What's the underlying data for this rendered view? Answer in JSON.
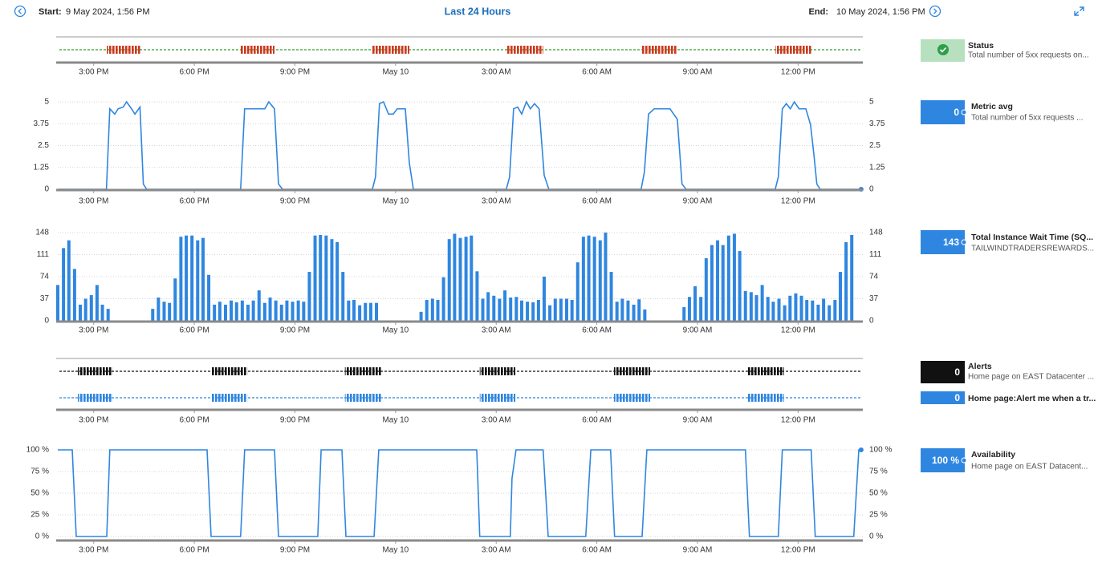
{
  "header": {
    "start_label": "Start:",
    "start": "9 May 2024, 1:56 PM",
    "title": "Last 24 Hours",
    "end_label": "End:",
    "end": "10 May 2024, 1:56 PM"
  },
  "time_axis": {
    "xlim": [
      0,
      24
    ],
    "xticks": [
      {
        "value": 1.07,
        "label": "3:00 PM"
      },
      {
        "value": 4.07,
        "label": "6:00 PM"
      },
      {
        "value": 7.07,
        "label": "9:00 PM"
      },
      {
        "value": 10.07,
        "label": "May 10"
      },
      {
        "value": 13.07,
        "label": "3:00 AM"
      },
      {
        "value": 16.07,
        "label": "6:00 AM"
      },
      {
        "value": 19.07,
        "label": "9:00 AM"
      },
      {
        "value": 22.07,
        "label": "12:00 PM"
      }
    ]
  },
  "chart_data": [
    {
      "type": "timeline",
      "series": [
        {
          "color": "#2e9e2e",
          "event_color": "#cc3a1e",
          "events": [
            [
              1.46,
              2.46
            ],
            [
              5.45,
              6.46
            ],
            [
              9.38,
              10.48
            ],
            [
              13.37,
              14.47
            ],
            [
              17.39,
              18.47
            ],
            [
              21.39,
              22.46
            ]
          ]
        }
      ]
    },
    {
      "type": "line",
      "color": "#2f86e0",
      "ylim": [
        0,
        5
      ],
      "yticks": [
        0,
        1.25,
        2.5,
        3.75,
        5
      ],
      "grid": true,
      "x": [
        0,
        1.45,
        1.55,
        1.7,
        1.8,
        1.95,
        2.05,
        2.2,
        2.3,
        2.45,
        2.55,
        2.65,
        5.45,
        5.57,
        6.17,
        6.29,
        6.46,
        6.58,
        6.7,
        9.38,
        9.47,
        9.59,
        9.71,
        9.86,
        10.0,
        10.12,
        10.36,
        10.48,
        10.6,
        13.37,
        13.47,
        13.59,
        13.71,
        13.83,
        13.97,
        14.09,
        14.21,
        14.35,
        14.5,
        14.64,
        17.39,
        17.49,
        17.61,
        17.78,
        18.25,
        18.47,
        18.61,
        18.73,
        21.39,
        21.48,
        21.6,
        21.72,
        21.84,
        21.96,
        22.1,
        22.3,
        22.44,
        22.54,
        22.63,
        22.73,
        23.95
      ],
      "values": [
        0,
        0,
        4.6,
        4.3,
        4.6,
        4.7,
        5,
        4.6,
        4.3,
        4.7,
        0.3,
        0,
        0,
        4.6,
        4.6,
        5,
        4.6,
        0.3,
        0,
        0,
        0.7,
        4.9,
        5,
        4.3,
        4.3,
        4.6,
        4.6,
        1.5,
        0,
        0,
        0.7,
        4.6,
        4.7,
        4.3,
        5,
        4.6,
        4.9,
        4.6,
        0.8,
        0,
        0,
        1,
        4.3,
        4.6,
        4.6,
        4,
        0.3,
        0,
        0,
        0.7,
        4.6,
        4.9,
        4.6,
        5,
        4.6,
        4.6,
        3.7,
        2,
        0.3,
        0,
        0
      ]
    },
    {
      "type": "bar",
      "color": "#2f86e0",
      "ylim": [
        0,
        148
      ],
      "yticks": [
        0,
        37,
        74,
        111,
        148
      ],
      "grid": true,
      "x": [
        0,
        0.17,
        0.33,
        0.5,
        0.67,
        0.83,
        1,
        1.17,
        1.33,
        1.5,
        1.67,
        1.83,
        2,
        2.17,
        2.33,
        2.5,
        2.67,
        2.83,
        3,
        3.17,
        3.33,
        3.5,
        3.67,
        3.83,
        4,
        4.17,
        4.33,
        4.5,
        4.67,
        4.83,
        5,
        5.17,
        5.33,
        5.5,
        5.67,
        5.83,
        6,
        6.17,
        6.33,
        6.5,
        6.67,
        6.83,
        7,
        7.17,
        7.33,
        7.5,
        7.67,
        7.83,
        8,
        8.17,
        8.33,
        8.5,
        8.67,
        8.83,
        9,
        9.17,
        9.33,
        9.5,
        9.67,
        9.83,
        10,
        10.17,
        10.33,
        10.5,
        10.67,
        10.83,
        11,
        11.17,
        11.33,
        11.5,
        11.67,
        11.83,
        12,
        12.17,
        12.33,
        12.5,
        12.67,
        12.83,
        13,
        13.17,
        13.33,
        13.5,
        13.67,
        13.83,
        14,
        14.17,
        14.33,
        14.5,
        14.67,
        14.83,
        15,
        15.17,
        15.33,
        15.5,
        15.67,
        15.83,
        16,
        16.17,
        16.33,
        16.5,
        16.67,
        16.83,
        17,
        17.17,
        17.33,
        17.5,
        17.67,
        17.83,
        18,
        18.17,
        18.33,
        18.5,
        18.67,
        18.83,
        19,
        19.17,
        19.33,
        19.5,
        19.67,
        19.83,
        20,
        20.17,
        20.33,
        20.5,
        20.67,
        20.83,
        21,
        21.17,
        21.33,
        21.5,
        21.67,
        21.83,
        22,
        22.17,
        22.33,
        22.5,
        22.67,
        22.83,
        23,
        23.17,
        23.33,
        23.5,
        23.67
      ],
      "values": [
        60,
        122,
        135,
        87,
        27,
        37,
        43,
        60,
        27,
        20,
        null,
        null,
        null,
        null,
        null,
        null,
        null,
        20,
        39,
        32,
        30,
        71,
        141,
        143,
        143,
        135,
        139,
        77,
        27,
        32,
        27,
        34,
        31,
        34,
        27,
        34,
        51,
        30,
        39,
        34,
        27,
        34,
        32,
        34,
        32,
        82,
        143,
        144,
        143,
        137,
        132,
        82,
        34,
        35,
        26,
        30,
        30,
        30,
        null,
        null,
        null,
        null,
        null,
        null,
        null,
        15,
        35,
        37,
        35,
        73,
        137,
        146,
        139,
        141,
        143,
        83,
        37,
        48,
        42,
        37,
        51,
        39,
        40,
        34,
        32,
        31,
        35,
        74,
        26,
        37,
        37,
        37,
        35,
        98,
        141,
        143,
        141,
        135,
        148,
        82,
        32,
        37,
        34,
        27,
        36,
        19,
        null,
        null,
        null,
        null,
        null,
        null,
        23,
        40,
        58,
        40,
        105,
        127,
        135,
        127,
        143,
        146,
        117,
        50,
        48,
        43,
        60,
        40,
        32,
        37,
        26,
        42,
        46,
        42,
        35,
        34,
        27,
        37,
        26,
        35,
        82,
        132,
        144
      ]
    },
    {
      "type": "timeline",
      "series": [
        {
          "color": "#111111",
          "event_color": "#111111",
          "events": [
            [
              0.6,
              1.63
            ],
            [
              4.57,
              5.65
            ],
            [
              8.56,
              9.64
            ],
            [
              12.58,
              13.64
            ],
            [
              16.58,
              17.66
            ],
            [
              20.57,
              21.65
            ]
          ]
        },
        {
          "color": "#2f86e0",
          "event_color": "#2f86e0",
          "events": [
            [
              0.6,
              1.63
            ],
            [
              4.57,
              5.65
            ],
            [
              8.56,
              9.64
            ],
            [
              12.58,
              13.64
            ],
            [
              16.58,
              17.66
            ],
            [
              20.57,
              21.65
            ]
          ]
        }
      ]
    },
    {
      "type": "line",
      "color": "#2f86e0",
      "ylim": [
        0,
        100
      ],
      "yticks": [
        {
          "value": 0,
          "label": "0 %"
        },
        {
          "value": 25,
          "label": "25 %"
        },
        {
          "value": 50,
          "label": "50 %"
        },
        {
          "value": 75,
          "label": "75 %"
        },
        {
          "value": 100,
          "label": "100 %"
        }
      ],
      "grid": true,
      "x": [
        0,
        0.43,
        0.55,
        1.46,
        1.55,
        4.45,
        4.57,
        5.45,
        5.57,
        6.46,
        6.58,
        7.75,
        7.85,
        8.47,
        8.59,
        9.43,
        9.57,
        12.49,
        12.58,
        13.49,
        13.54,
        13.66,
        14.47,
        14.62,
        15.74,
        15.89,
        16.48,
        16.6,
        17.42,
        17.56,
        20.5,
        20.62,
        21.48,
        21.6,
        22.46,
        22.58,
        23.73,
        23.88,
        23.95
      ],
      "values": [
        100,
        100,
        0,
        0,
        100,
        100,
        0,
        0,
        100,
        100,
        0,
        0,
        100,
        100,
        0,
        0,
        100,
        100,
        0,
        0,
        67,
        100,
        100,
        0,
        0,
        100,
        100,
        0,
        0,
        100,
        100,
        0,
        0,
        100,
        100,
        0,
        0,
        100,
        100
      ]
    }
  ],
  "tiles": [
    {
      "title": "Status",
      "subtitle": "Total number of 5xx requests on..."
    },
    {
      "value": "0",
      "title": "Metric avg",
      "subtitle": "Total number of 5xx requests ..."
    },
    {
      "value": "143",
      "title": "Total Instance Wait Time (SQ...",
      "subtitle": "TAILWINDTRADERSREWARDS..."
    },
    {
      "value": "0",
      "title": "Alerts",
      "subtitle": "Home page on EAST Datacenter ..."
    },
    {
      "value": "0",
      "title": "Home page:Alert me when a tr..."
    },
    {
      "value": "100 %",
      "title": "Availability",
      "subtitle": "Home page on EAST Datacent..."
    }
  ]
}
